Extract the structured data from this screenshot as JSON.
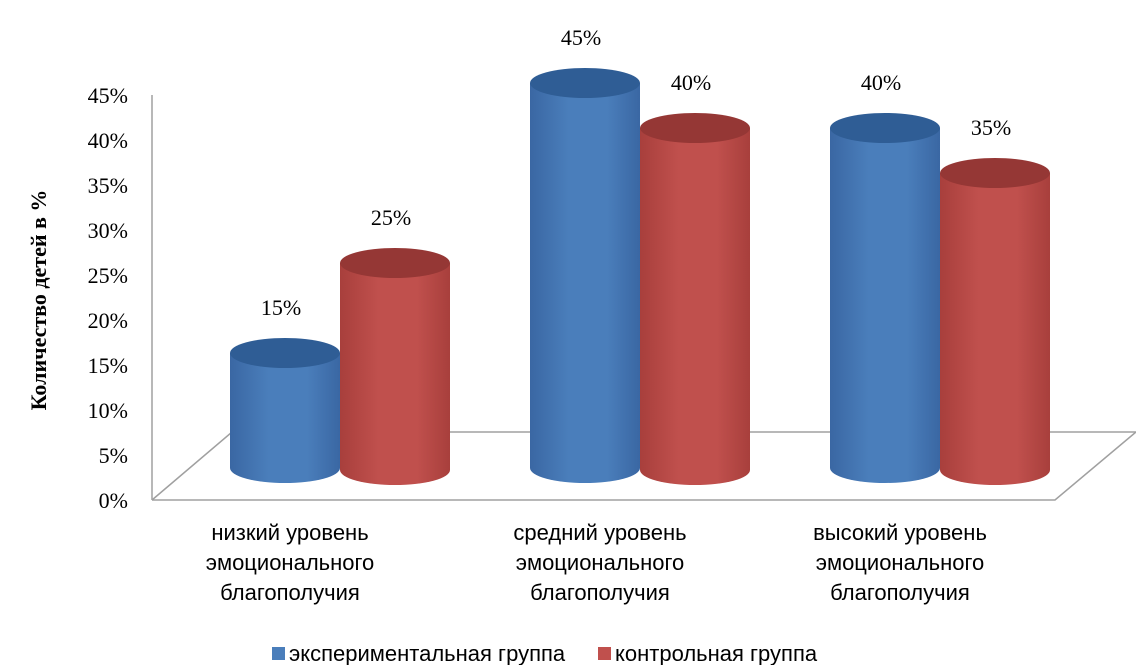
{
  "chart_data": {
    "type": "bar",
    "title": "",
    "xlabel": "",
    "ylabel": "Количество детей в %",
    "ylim": [
      0,
      45
    ],
    "ytick_step": 5,
    "y_tick_format": "percent",
    "categories": [
      [
        "низкий уровень",
        "эмоционального",
        "благополучия"
      ],
      [
        "средний уровень",
        "эмоционального",
        "благополучия"
      ],
      [
        "высокий уровень",
        "эмоционального",
        "благополучия"
      ]
    ],
    "series": [
      {
        "name": "экспериментальная группа",
        "values": [
          15,
          45,
          40
        ],
        "labels": [
          "15%",
          "45%",
          "40%"
        ],
        "color": "#4a7ebb",
        "side_color": "#3a67a3",
        "top_color": "#2f5d95"
      },
      {
        "name": "контрольная группа",
        "values": [
          25,
          40,
          35
        ],
        "labels": [
          "25%",
          "40%",
          "35%"
        ],
        "color": "#c0504d",
        "side_color": "#a83f3c",
        "top_color": "#953735"
      }
    ],
    "style": "3d-cylinder",
    "legend_position": "bottom",
    "grid": false
  }
}
